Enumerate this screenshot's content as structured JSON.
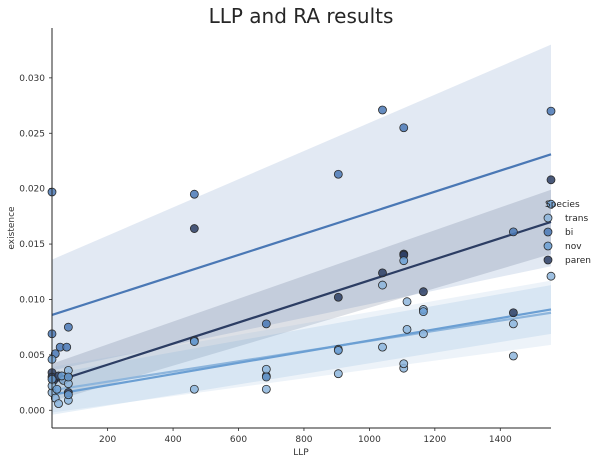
{
  "chart_data": {
    "type": "scatter",
    "title": "LLP and RA results",
    "xlabel": "LLP",
    "ylabel": "existence",
    "xlim": [
      30,
      1555
    ],
    "ylim": [
      -0.0016,
      0.0345
    ],
    "xticks": [
      200,
      400,
      600,
      800,
      1000,
      1200,
      1400
    ],
    "yticks": [
      0.0,
      0.005,
      0.01,
      0.015,
      0.02,
      0.025,
      0.03
    ],
    "ytick_labels": [
      "0.000",
      "0.005",
      "0.010",
      "0.015",
      "0.020",
      "0.025",
      "0.030"
    ],
    "grid": false,
    "legend": {
      "title": "Species",
      "placement": "right"
    },
    "series": [
      {
        "name": "trans",
        "color": "#8db5dc",
        "points": [
          [
            30,
            0.0016
          ],
          [
            30,
            0.0022
          ],
          [
            40,
            0.0011
          ],
          [
            50,
            0.0006
          ],
          [
            65,
            0.0027
          ],
          [
            80,
            0.0009
          ],
          [
            80,
            0.0024
          ],
          [
            80,
            0.0036
          ],
          [
            465,
            0.0019
          ],
          [
            685,
            0.0019
          ],
          [
            685,
            0.0037
          ],
          [
            905,
            0.0033
          ],
          [
            905,
            0.0055
          ],
          [
            1040,
            0.0057
          ],
          [
            1040,
            0.0113
          ],
          [
            1105,
            0.0038
          ],
          [
            1105,
            0.0042
          ],
          [
            1115,
            0.0073
          ],
          [
            1115,
            0.0098
          ],
          [
            1165,
            0.0069
          ],
          [
            1165,
            0.0091
          ],
          [
            1440,
            0.0049
          ],
          [
            1440,
            0.0078
          ],
          [
            1555,
            0.0121
          ]
        ],
        "fit": {
          "y_start": 0.0018,
          "y_end": 0.0088
        },
        "ci_lower": {
          "y_start": -0.0002,
          "y_end": 0.0059
        },
        "ci_upper": {
          "y_start": 0.0039,
          "y_end": 0.0117
        }
      },
      {
        "name": "bi",
        "color": "#4a78b5",
        "points": [
          [
            30,
            0.0197
          ],
          [
            30,
            0.0069
          ],
          [
            40,
            0.0051
          ],
          [
            55,
            0.0057
          ],
          [
            75,
            0.0057
          ],
          [
            80,
            0.0075
          ],
          [
            465,
            0.0195
          ],
          [
            465,
            0.0063
          ],
          [
            685,
            0.0078
          ],
          [
            905,
            0.0213
          ],
          [
            1040,
            0.0271
          ],
          [
            1105,
            0.0255
          ],
          [
            1440,
            0.0161
          ],
          [
            1555,
            0.027
          ]
        ],
        "fit": {
          "y_start": 0.0086,
          "y_end": 0.0231
        },
        "ci_lower": {
          "y_start": 0.0036,
          "y_end": 0.013
        },
        "ci_upper": {
          "y_start": 0.0136,
          "y_end": 0.033
        }
      },
      {
        "name": "nov",
        "color": "#6b9fd3",
        "points": [
          [
            30,
            0.0046
          ],
          [
            30,
            0.0028
          ],
          [
            45,
            0.0019
          ],
          [
            60,
            0.0031
          ],
          [
            80,
            0.0014
          ],
          [
            80,
            0.003
          ],
          [
            465,
            0.0062
          ],
          [
            685,
            0.003
          ],
          [
            905,
            0.0054
          ],
          [
            1105,
            0.0135
          ],
          [
            1165,
            0.0089
          ],
          [
            1555,
            0.0186
          ]
        ],
        "fit": {
          "y_start": 0.0014,
          "y_end": 0.0091
        },
        "ci_lower": {
          "y_start": -0.0004,
          "y_end": 0.0069
        },
        "ci_upper": {
          "y_start": 0.0033,
          "y_end": 0.0113
        }
      },
      {
        "name": "paren",
        "color": "#2c3d63",
        "points": [
          [
            30,
            0.0034
          ],
          [
            30,
            0.003
          ],
          [
            35,
            0.0027
          ],
          [
            50,
            0.0031
          ],
          [
            65,
            0.0028
          ],
          [
            80,
            0.003
          ],
          [
            80,
            0.0016
          ],
          [
            465,
            0.0164
          ],
          [
            685,
            0.0031
          ],
          [
            905,
            0.0102
          ],
          [
            1040,
            0.0124
          ],
          [
            1105,
            0.0141
          ],
          [
            1105,
            0.014
          ],
          [
            1165,
            0.0107
          ],
          [
            1440,
            0.0088
          ],
          [
            1555,
            0.0208
          ]
        ],
        "fit": {
          "y_start": 0.0025,
          "y_end": 0.017
        },
        "ci_lower": {
          "y_start": 0.0008,
          "y_end": 0.0141
        },
        "ci_upper": {
          "y_start": 0.0042,
          "y_end": 0.0199
        }
      }
    ]
  }
}
